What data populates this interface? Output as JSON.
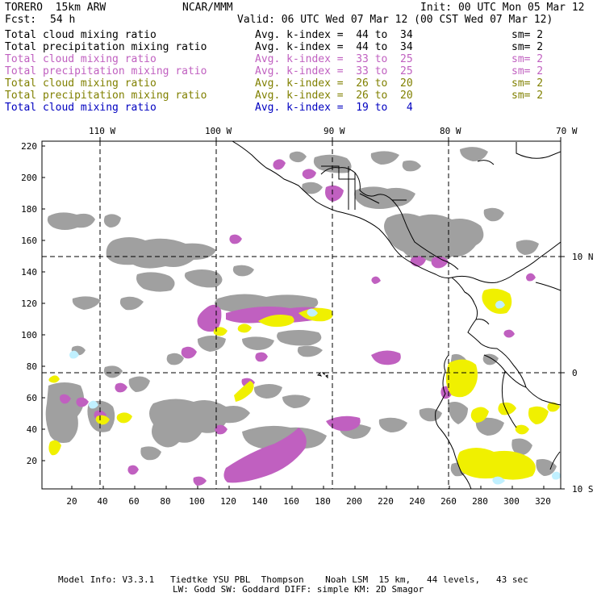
{
  "header": {
    "model": "TORERO  15km ARW",
    "org": "NCAR/MMM",
    "init": "Init: 00 UTC Mon 05 Mar 12",
    "fcst_label": "Fcst:",
    "fcst_value": "54 h",
    "valid": "Valid: 06 UTC Wed 07 Mar 12 (00 CST Wed 07 Mar 12)"
  },
  "legend": [
    {
      "field": "Total cloud mixing ratio",
      "kindex": "Avg. k-index =  44 to  34",
      "sm": "sm= 2",
      "color": "#000000"
    },
    {
      "field": "Total precipitation mixing ratio",
      "kindex": "Avg. k-index =  44 to  34",
      "sm": "sm= 2",
      "color": "#000000"
    },
    {
      "field": "Total cloud mixing ratio",
      "kindex": "Avg. k-index =  33 to  25",
      "sm": "sm= 2",
      "color": "#c060c0"
    },
    {
      "field": "Total precipitation mixing ratio",
      "kindex": "Avg. k-index =  33 to  25",
      "sm": "sm= 2",
      "color": "#c060c0"
    },
    {
      "field": "Total cloud mixing ratio",
      "kindex": "Avg. k-index =  26 to  20",
      "sm": "sm= 2",
      "color": "#808000"
    },
    {
      "field": "Total precipitation mixing ratio",
      "kindex": "Avg. k-index =  26 to  20",
      "sm": "sm= 2",
      "color": "#808000"
    },
    {
      "field": "Total cloud mixing ratio",
      "kindex": "Avg. k-index =  19 to   4",
      "sm": "",
      "color": "#0000c0"
    }
  ],
  "map": {
    "lon_labels": [
      "110 W",
      "100 W",
      "90 W",
      "80 W",
      "70 W"
    ],
    "lat_labels": [
      "10 N",
      "0",
      "10 S"
    ],
    "y_ticks": [
      "220",
      "200",
      "180",
      "160",
      "140",
      "120",
      "100",
      "80",
      "60",
      "40",
      "20"
    ],
    "x_ticks": [
      "20",
      "40",
      "60",
      "80",
      "100",
      "120",
      "140",
      "160",
      "180",
      "200",
      "220",
      "240",
      "260",
      "280",
      "300",
      "320"
    ],
    "colors": {
      "gray": "#a0a0a0",
      "magenta": "#c060c0",
      "yellow": "#f0f000",
      "cyan": "#c0f0ff"
    }
  },
  "footer": {
    "line1": "Model Info: V3.3.1   Tiedtke YSU PBL  Thompson    Noah LSM  15 km,   44 levels,   43 sec",
    "line2": "LW: Godd SW: Goddard DIFF: simple KM: 2D Smagor"
  }
}
